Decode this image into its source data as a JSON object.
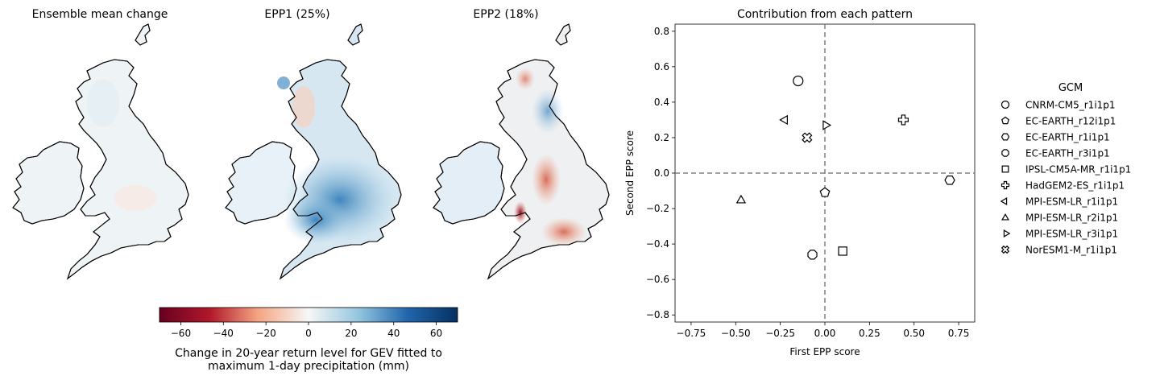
{
  "colors": {
    "neg_dark": "#67001f",
    "neg_mid": "#d6604d",
    "neg_light": "#fddbc7",
    "neutral": "#f7f7f7",
    "pos_light": "#d1e5f0",
    "pos_mid": "#4393c3",
    "pos_dark": "#053061",
    "land_base": "#eef3f6",
    "coast": "#000000",
    "zero_line": "#808080"
  },
  "maps": {
    "titles": [
      "Ensemble mean change",
      "EPP1 (25%)",
      "EPP2 (18%)"
    ],
    "colorbar": {
      "min": -70,
      "max": 70,
      "ticks": [
        -60,
        -40,
        -20,
        0,
        20,
        40,
        60
      ],
      "tick_labels": [
        "−60",
        "−40",
        "−20",
        "0",
        "20",
        "40",
        "60"
      ],
      "label_line1": "Change in 20-year return level for GEV fitted to",
      "label_line2": "maximum 1-day precipitation (mm)"
    }
  },
  "chart_data": {
    "type": "scatter",
    "title": "Contribution from each pattern",
    "xlabel": "First EPP score",
    "ylabel": "Second EPP score",
    "xlim": [
      -0.84,
      0.84
    ],
    "ylim": [
      -0.84,
      0.84
    ],
    "xticks": [
      -0.75,
      -0.5,
      -0.25,
      0.0,
      0.25,
      0.5,
      0.75
    ],
    "xtick_labels": [
      "−0.75",
      "−0.50",
      "−0.25",
      "0.00",
      "0.25",
      "0.50",
      "0.75"
    ],
    "yticks": [
      -0.8,
      -0.6,
      -0.4,
      -0.2,
      0.0,
      0.2,
      0.4,
      0.6,
      0.8
    ],
    "ytick_labels": [
      "−0.8",
      "−0.6",
      "−0.4",
      "−0.2",
      "0.0",
      "0.2",
      "0.4",
      "0.6",
      "0.8"
    ],
    "reference_lines": {
      "x": 0.0,
      "y": 0.0
    },
    "legend_title": "GCM",
    "legend_position": "right",
    "series": [
      {
        "name": "CNRM-CM5_r1i1p1",
        "marker": "circle",
        "x": -0.15,
        "y": 0.52
      },
      {
        "name": "EC-EARTH_r12i1p1",
        "marker": "pentagon",
        "x": 0.0,
        "y": -0.11
      },
      {
        "name": "EC-EARTH_r1i1p1",
        "marker": "hexagon",
        "x": 0.7,
        "y": -0.04
      },
      {
        "name": "EC-EARTH_r3i1p1",
        "marker": "octagon",
        "x": -0.07,
        "y": -0.46
      },
      {
        "name": "IPSL-CM5A-MR_r1i1p1",
        "marker": "square",
        "x": 0.1,
        "y": -0.44
      },
      {
        "name": "HadGEM2-ES_r1i1p1",
        "marker": "plus",
        "x": 0.44,
        "y": 0.3
      },
      {
        "name": "MPI-ESM-LR_r1i1p1",
        "marker": "triangle-left",
        "x": -0.22,
        "y": 0.3
      },
      {
        "name": "MPI-ESM-LR_r2i1p1",
        "marker": "triangle-up",
        "x": -0.47,
        "y": -0.15
      },
      {
        "name": "MPI-ESM-LR_r3i1p1",
        "marker": "triangle-right",
        "x": 0.0,
        "y": 0.27
      },
      {
        "name": "NorESM1-M_r1i1p1",
        "marker": "x-filled",
        "x": -0.1,
        "y": 0.2
      }
    ]
  }
}
